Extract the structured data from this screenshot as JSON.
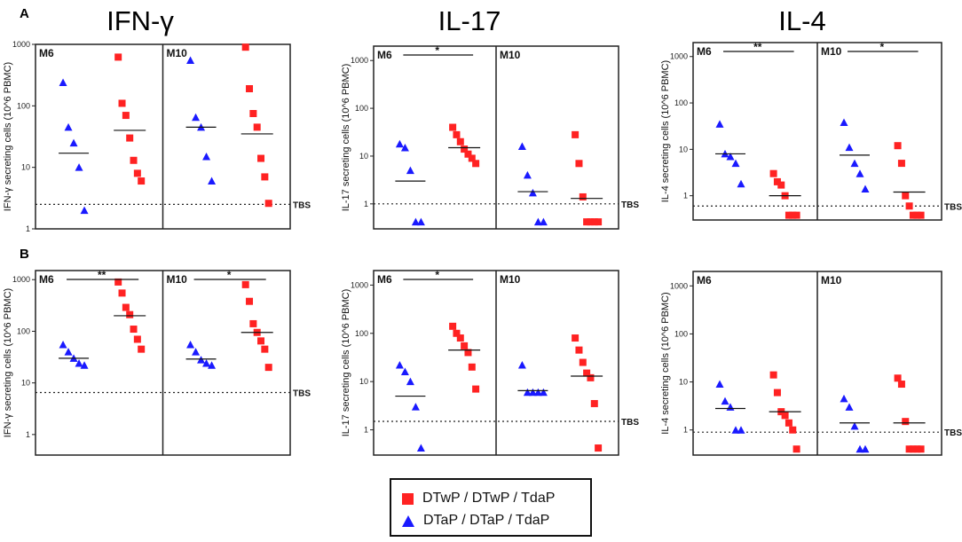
{
  "panel_labels": [
    "A",
    "B"
  ],
  "cytokine_titles": [
    "IFN-γ",
    "IL-17",
    "IL-4"
  ],
  "legend": {
    "items": [
      {
        "label": "DTwP / DTwP / TdaP",
        "color": "#ff2222",
        "shape": "square"
      },
      {
        "label": "DTaP / DTaP / TdaP",
        "color": "#1a1aff",
        "shape": "triangle"
      }
    ]
  },
  "chart_data": [
    {
      "type": "scatter",
      "row": "A",
      "cytokine": "IFN-γ",
      "ylabel": "IFN-γ secreting cells (10^6 PBMC)",
      "ylim": [
        1,
        1000
      ],
      "yscale": "log",
      "yticks": [
        "1",
        "10",
        "100",
        "1000"
      ],
      "tbs": {
        "label": "TBS",
        "value": 2.5
      },
      "subpanels": [
        {
          "name": "M6",
          "significance": "",
          "blue": {
            "values": [
              240,
              45,
              25,
              10,
              2
            ],
            "median": 17
          },
          "red": {
            "values": [
              620,
              110,
              70,
              30,
              13,
              8,
              6
            ],
            "median": 40
          }
        },
        {
          "name": "M10",
          "significance": "",
          "blue": {
            "values": [
              550,
              65,
              45,
              15,
              6
            ],
            "median": 45
          },
          "red": {
            "values": [
              900,
              190,
              75,
              45,
              14,
              7,
              2.6
            ],
            "median": 35
          }
        }
      ]
    },
    {
      "type": "scatter",
      "row": "A",
      "cytokine": "IL-17",
      "ylabel": "IL-17 secreting cells (10^6 PBMC)",
      "ylim": [
        0.3,
        2000
      ],
      "yscale": "log",
      "yticks": [
        "1",
        "10",
        "100",
        "1000"
      ],
      "tbs": {
        "label": "TBS",
        "value": 1
      },
      "subpanels": [
        {
          "name": "M6",
          "significance": "*",
          "blue": {
            "values": [
              18,
              15,
              5,
              0.42,
              0.42
            ],
            "median": 3
          },
          "red": {
            "values": [
              40,
              28,
              20,
              14,
              11,
              9,
              7
            ],
            "median": 15
          }
        },
        {
          "name": "M10",
          "significance": "",
          "blue": {
            "values": [
              16,
              4,
              1.7,
              0.42,
              0.42
            ],
            "median": 1.8
          },
          "red": {
            "values": [
              28,
              7,
              1.4,
              0.42,
              0.42,
              0.42,
              0.42
            ],
            "median": 1.3
          }
        }
      ]
    },
    {
      "type": "scatter",
      "row": "A",
      "cytokine": "IL-4",
      "ylabel": "IL-4 secreting cells (10^6 PBMC)",
      "ylim": [
        0.3,
        2000
      ],
      "yscale": "log",
      "yticks": [
        "1",
        "10",
        "100",
        "1000"
      ],
      "tbs": {
        "label": "TBS",
        "value": 0.6
      },
      "subpanels": [
        {
          "name": "M6",
          "significance": "**",
          "blue": {
            "values": [
              35,
              8,
              7,
              5,
              1.8
            ],
            "median": 8
          },
          "red": {
            "values": [
              3,
              2,
              1.7,
              1,
              0.38,
              0.38,
              0.38
            ],
            "median": 1
          }
        },
        {
          "name": "M10",
          "significance": "*",
          "blue": {
            "values": [
              38,
              11,
              5,
              3,
              1.4
            ],
            "median": 7.5
          },
          "red": {
            "values": [
              12,
              5,
              1,
              0.6,
              0.38,
              0.38,
              0.38
            ],
            "median": 1.2
          }
        }
      ]
    },
    {
      "type": "scatter",
      "row": "B",
      "cytokine": "IFN-γ",
      "ylabel": "IFN-γ secreting cells (10^6 PBMC)",
      "ylim": [
        0.4,
        1500
      ],
      "yscale": "log",
      "yticks": [
        "1",
        "10",
        "100",
        "1000"
      ],
      "tbs": {
        "label": "TBS",
        "value": 6.5
      },
      "subpanels": [
        {
          "name": "M6",
          "significance": "**",
          "blue": {
            "values": [
              55,
              40,
              30,
              24,
              22
            ],
            "median": 30
          },
          "red": {
            "values": [
              900,
              550,
              290,
              210,
              110,
              70,
              45
            ],
            "median": 200
          }
        },
        {
          "name": "M10",
          "significance": "*",
          "blue": {
            "values": [
              55,
              40,
              28,
              24,
              22
            ],
            "median": 29
          },
          "red": {
            "values": [
              800,
              380,
              140,
              95,
              65,
              45,
              20
            ],
            "median": 95
          }
        }
      ]
    },
    {
      "type": "scatter",
      "row": "B",
      "cytokine": "IL-17",
      "ylabel": "IL-17 secreting cells (10^6 PBMC)",
      "ylim": [
        0.3,
        2000
      ],
      "yscale": "log",
      "yticks": [
        "1",
        "10",
        "100",
        "1000"
      ],
      "tbs": {
        "label": "TBS",
        "value": 1.5
      },
      "subpanels": [
        {
          "name": "M6",
          "significance": "*",
          "blue": {
            "values": [
              22,
              16,
              10,
              3,
              0.42
            ],
            "median": 5
          },
          "red": {
            "values": [
              140,
              100,
              80,
              55,
              40,
              20,
              7
            ],
            "median": 45
          }
        },
        {
          "name": "M10",
          "significance": "",
          "blue": {
            "values": [
              22,
              6,
              6,
              6,
              6
            ],
            "median": 6.5
          },
          "red": {
            "values": [
              80,
              45,
              25,
              15,
              12,
              3.5,
              0.42
            ],
            "median": 13
          }
        }
      ]
    },
    {
      "type": "scatter",
      "row": "B",
      "cytokine": "IL-4",
      "ylabel": "IL-4 secreting cells (10^6 PBMC)",
      "ylim": [
        0.3,
        2000
      ],
      "yscale": "log",
      "yticks": [
        "1",
        "10",
        "100",
        "1000"
      ],
      "tbs": {
        "label": "TBS",
        "value": 0.9
      },
      "subpanels": [
        {
          "name": "M6",
          "significance": "",
          "blue": {
            "values": [
              9,
              4,
              3,
              1,
              1
            ],
            "median": 2.8
          },
          "red": {
            "values": [
              14,
              6,
              2.4,
              2,
              1.4,
              1,
              0.4
            ],
            "median": 2.4
          }
        },
        {
          "name": "M10",
          "significance": "",
          "blue": {
            "values": [
              4.5,
              3,
              1.2,
              0.4,
              0.4
            ],
            "median": 1.4
          },
          "red": {
            "values": [
              12,
              9,
              1.5,
              0.4,
              0.4,
              0.4,
              0.4
            ],
            "median": 1.4
          }
        }
      ]
    }
  ]
}
